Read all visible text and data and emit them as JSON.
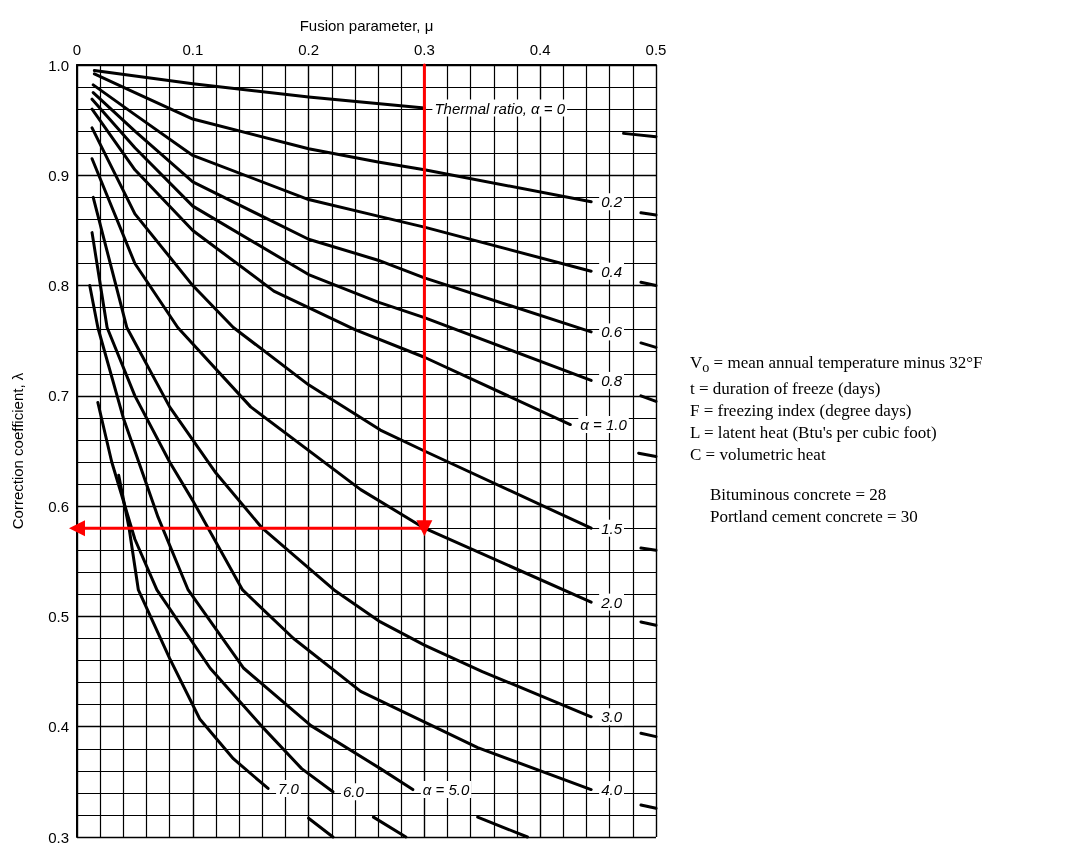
{
  "chart_data": {
    "type": "line",
    "xlabel": "Fusion parameter, μ",
    "ylabel": "Correction coefficient, λ",
    "xlim": [
      0,
      0.5
    ],
    "xticks": [
      0,
      0.1,
      0.2,
      0.3,
      0.4,
      0.5
    ],
    "ylim": [
      0.3,
      1.0
    ],
    "yticks": [
      0.3,
      0.4,
      0.5,
      0.6,
      0.7,
      0.8,
      0.9,
      {
        "value": 1,
        "label": "1.0"
      }
    ],
    "grid": true,
    "line_style": "solid",
    "series": [
      {
        "name": "Thermal ratio, α = 0",
        "color": "#000000",
        "x": [
          0.015,
          0.1,
          0.2,
          0.3,
          0.38,
          0.472,
          0.5
        ],
        "values": [
          0.995,
          0.983,
          0.971,
          0.961,
          null,
          0.938,
          0.935
        ]
      },
      {
        "name": "0.2",
        "color": "#000000",
        "x": [
          0.015,
          0.05,
          0.1,
          0.2,
          0.26,
          0.3,
          0.444,
          0.465,
          0.487,
          0.5
        ],
        "values": [
          0.992,
          0.975,
          0.951,
          0.924,
          0.912,
          0.905,
          0.876,
          null,
          0.866,
          0.864
        ]
      },
      {
        "name": "0.4",
        "color": "#000000",
        "x": [
          0.014,
          0.05,
          0.1,
          0.2,
          0.26,
          0.3,
          0.444,
          0.465,
          0.487,
          0.5
        ],
        "values": [
          0.982,
          0.955,
          0.918,
          0.878,
          0.863,
          0.853,
          0.813,
          null,
          0.803,
          0.8
        ]
      },
      {
        "name": "0.6",
        "color": "#000000",
        "x": [
          0.014,
          0.05,
          0.1,
          0.2,
          0.26,
          0.3,
          0.444,
          0.465,
          0.487,
          0.5
        ],
        "values": [
          0.975,
          0.94,
          0.894,
          0.842,
          0.823,
          0.807,
          0.758,
          null,
          0.748,
          0.744
        ]
      },
      {
        "name": "0.8",
        "color": "#000000",
        "x": [
          0.013,
          0.05,
          0.1,
          0.2,
          0.26,
          0.3,
          0.444,
          0.465,
          0.487,
          0.5
        ],
        "values": [
          0.969,
          0.925,
          0.872,
          0.81,
          0.785,
          0.771,
          0.714,
          null,
          0.7,
          0.695
        ]
      },
      {
        "name": "α = 1.0",
        "color": "#000000",
        "x": [
          0.013,
          0.05,
          0.1,
          0.17,
          0.24,
          0.3,
          0.426,
          0.455,
          0.485,
          0.5
        ],
        "values": [
          0.96,
          0.905,
          0.85,
          0.795,
          0.76,
          0.735,
          0.674,
          null,
          0.648,
          0.645
        ]
      },
      {
        "name": "1.5",
        "color": "#000000",
        "x": [
          0.013,
          0.05,
          0.1,
          0.135,
          0.2,
          0.262,
          0.3,
          0.444,
          0.465,
          0.487,
          0.5
        ],
        "values": [
          0.943,
          0.865,
          0.8,
          0.762,
          0.71,
          0.669,
          0.65,
          0.58,
          null,
          0.562,
          0.56
        ]
      },
      {
        "name": "2.0",
        "color": "#000000",
        "x": [
          0.013,
          0.05,
          0.087,
          0.15,
          0.245,
          0.3,
          0.444,
          0.465,
          0.487,
          0.5
        ],
        "values": [
          0.915,
          0.82,
          0.762,
          0.69,
          0.615,
          0.58,
          0.513,
          null,
          0.495,
          0.492
        ]
      },
      {
        "name": "3.0",
        "color": "#000000",
        "x": [
          0.014,
          0.043,
          0.08,
          0.12,
          0.16,
          0.222,
          0.262,
          0.3,
          0.35,
          0.444,
          0.465,
          0.487,
          0.5
        ],
        "values": [
          0.88,
          0.762,
          0.69,
          0.63,
          0.58,
          0.524,
          0.495,
          0.474,
          0.45,
          0.409,
          null,
          0.394,
          0.391
        ]
      },
      {
        "name": "4.0",
        "color": "#000000",
        "x": [
          0.013,
          0.026,
          0.05,
          0.08,
          0.1,
          0.143,
          0.187,
          0.245,
          0.346,
          0.444,
          0.465,
          0.487,
          0.5
        ],
        "values": [
          0.848,
          0.762,
          0.7,
          0.64,
          0.605,
          0.524,
          0.48,
          0.432,
          0.381,
          0.343,
          null,
          0.329,
          0.326
        ]
      },
      {
        "name": "α = 5.0",
        "color": "#000000",
        "x": [
          0.011,
          0.018,
          0.04,
          0.07,
          0.096,
          0.144,
          0.202,
          0.262,
          0.29,
          0.318,
          0.346,
          0.389
        ],
        "values": [
          0.8,
          0.762,
          0.68,
          0.59,
          0.524,
          0.453,
          0.401,
          0.362,
          0.343,
          null,
          0.318,
          0.3
        ]
      },
      {
        "name": "6.0",
        "color": "#000000",
        "x": [
          0.018,
          0.03,
          0.05,
          0.069,
          0.115,
          0.159,
          0.194,
          0.221,
          0.238,
          0.256,
          0.284
        ],
        "values": [
          0.694,
          0.64,
          0.57,
          0.524,
          0.453,
          0.401,
          0.362,
          0.341,
          null,
          0.318,
          0.3
        ]
      },
      {
        "name": "7.0",
        "color": "#000000",
        "x": [
          0.036,
          0.045,
          0.053,
          0.08,
          0.106,
          0.135,
          0.165,
          0.182,
          0.2,
          0.221
        ],
        "values": [
          0.628,
          0.58,
          0.524,
          0.462,
          0.407,
          0.371,
          0.344,
          null,
          0.317,
          0.3
        ]
      },
      {
        "color": "#ff0000",
        "marker": "triangle",
        "x": [
          0.3,
          0.3,
          0
        ],
        "values": [
          1.0,
          0.58,
          0.58
        ]
      }
    ],
    "annotations": [
      "V$_{o}$ = mean annual temperature minus 32°F",
      "t = duration of freeze (days)",
      "F = freezing index (degree days)",
      "L = latent heat (Btu's per cubic foot)",
      "C = volumetric heat",
      "Bituminous concrete = 28",
      "Portland cement concrete = 30"
    ]
  }
}
